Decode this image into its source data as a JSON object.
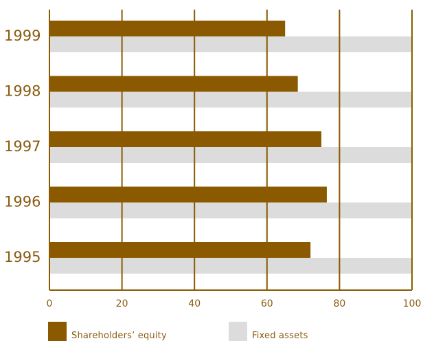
{
  "chart_data": {
    "type": "bar",
    "orientation": "horizontal",
    "categories": [
      "1999",
      "1998",
      "1997",
      "1996",
      "1995"
    ],
    "series": [
      {
        "name": "Shareholders’ equity",
        "values": [
          65,
          68.5,
          75,
          76.5,
          72
        ],
        "color": "#8b5a00"
      },
      {
        "name": "Fixed assets",
        "values": [
          100,
          100,
          100,
          100,
          100
        ],
        "color": "#dcdcdc"
      }
    ],
    "xlim": [
      0,
      100
    ],
    "xticks": [
      "0",
      "20",
      "40",
      "60",
      "80",
      "100"
    ],
    "grid": true,
    "legend_position": "bottom",
    "colors": {
      "axis": "#8b5a00",
      "tick_label": "#8a5a10",
      "category_label": "#8a5a10"
    }
  }
}
